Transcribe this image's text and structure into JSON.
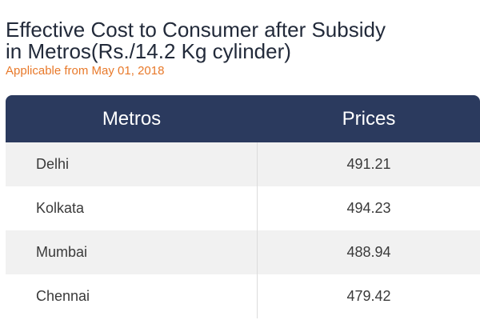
{
  "title_lines": [
    "Effective Cost to Consumer after Subsidy",
    "in Metros(Rs./14.2 Kg cylinder)"
  ],
  "subtitle": "Applicable from May 01, 2018",
  "table": {
    "columns": [
      "Metros",
      "Prices"
    ],
    "rows": [
      [
        "Delhi",
        "491.21"
      ],
      [
        "Kolkata",
        "494.23"
      ],
      [
        "Mumbai",
        "488.94"
      ],
      [
        "Chennai",
        "479.42"
      ]
    ]
  }
}
